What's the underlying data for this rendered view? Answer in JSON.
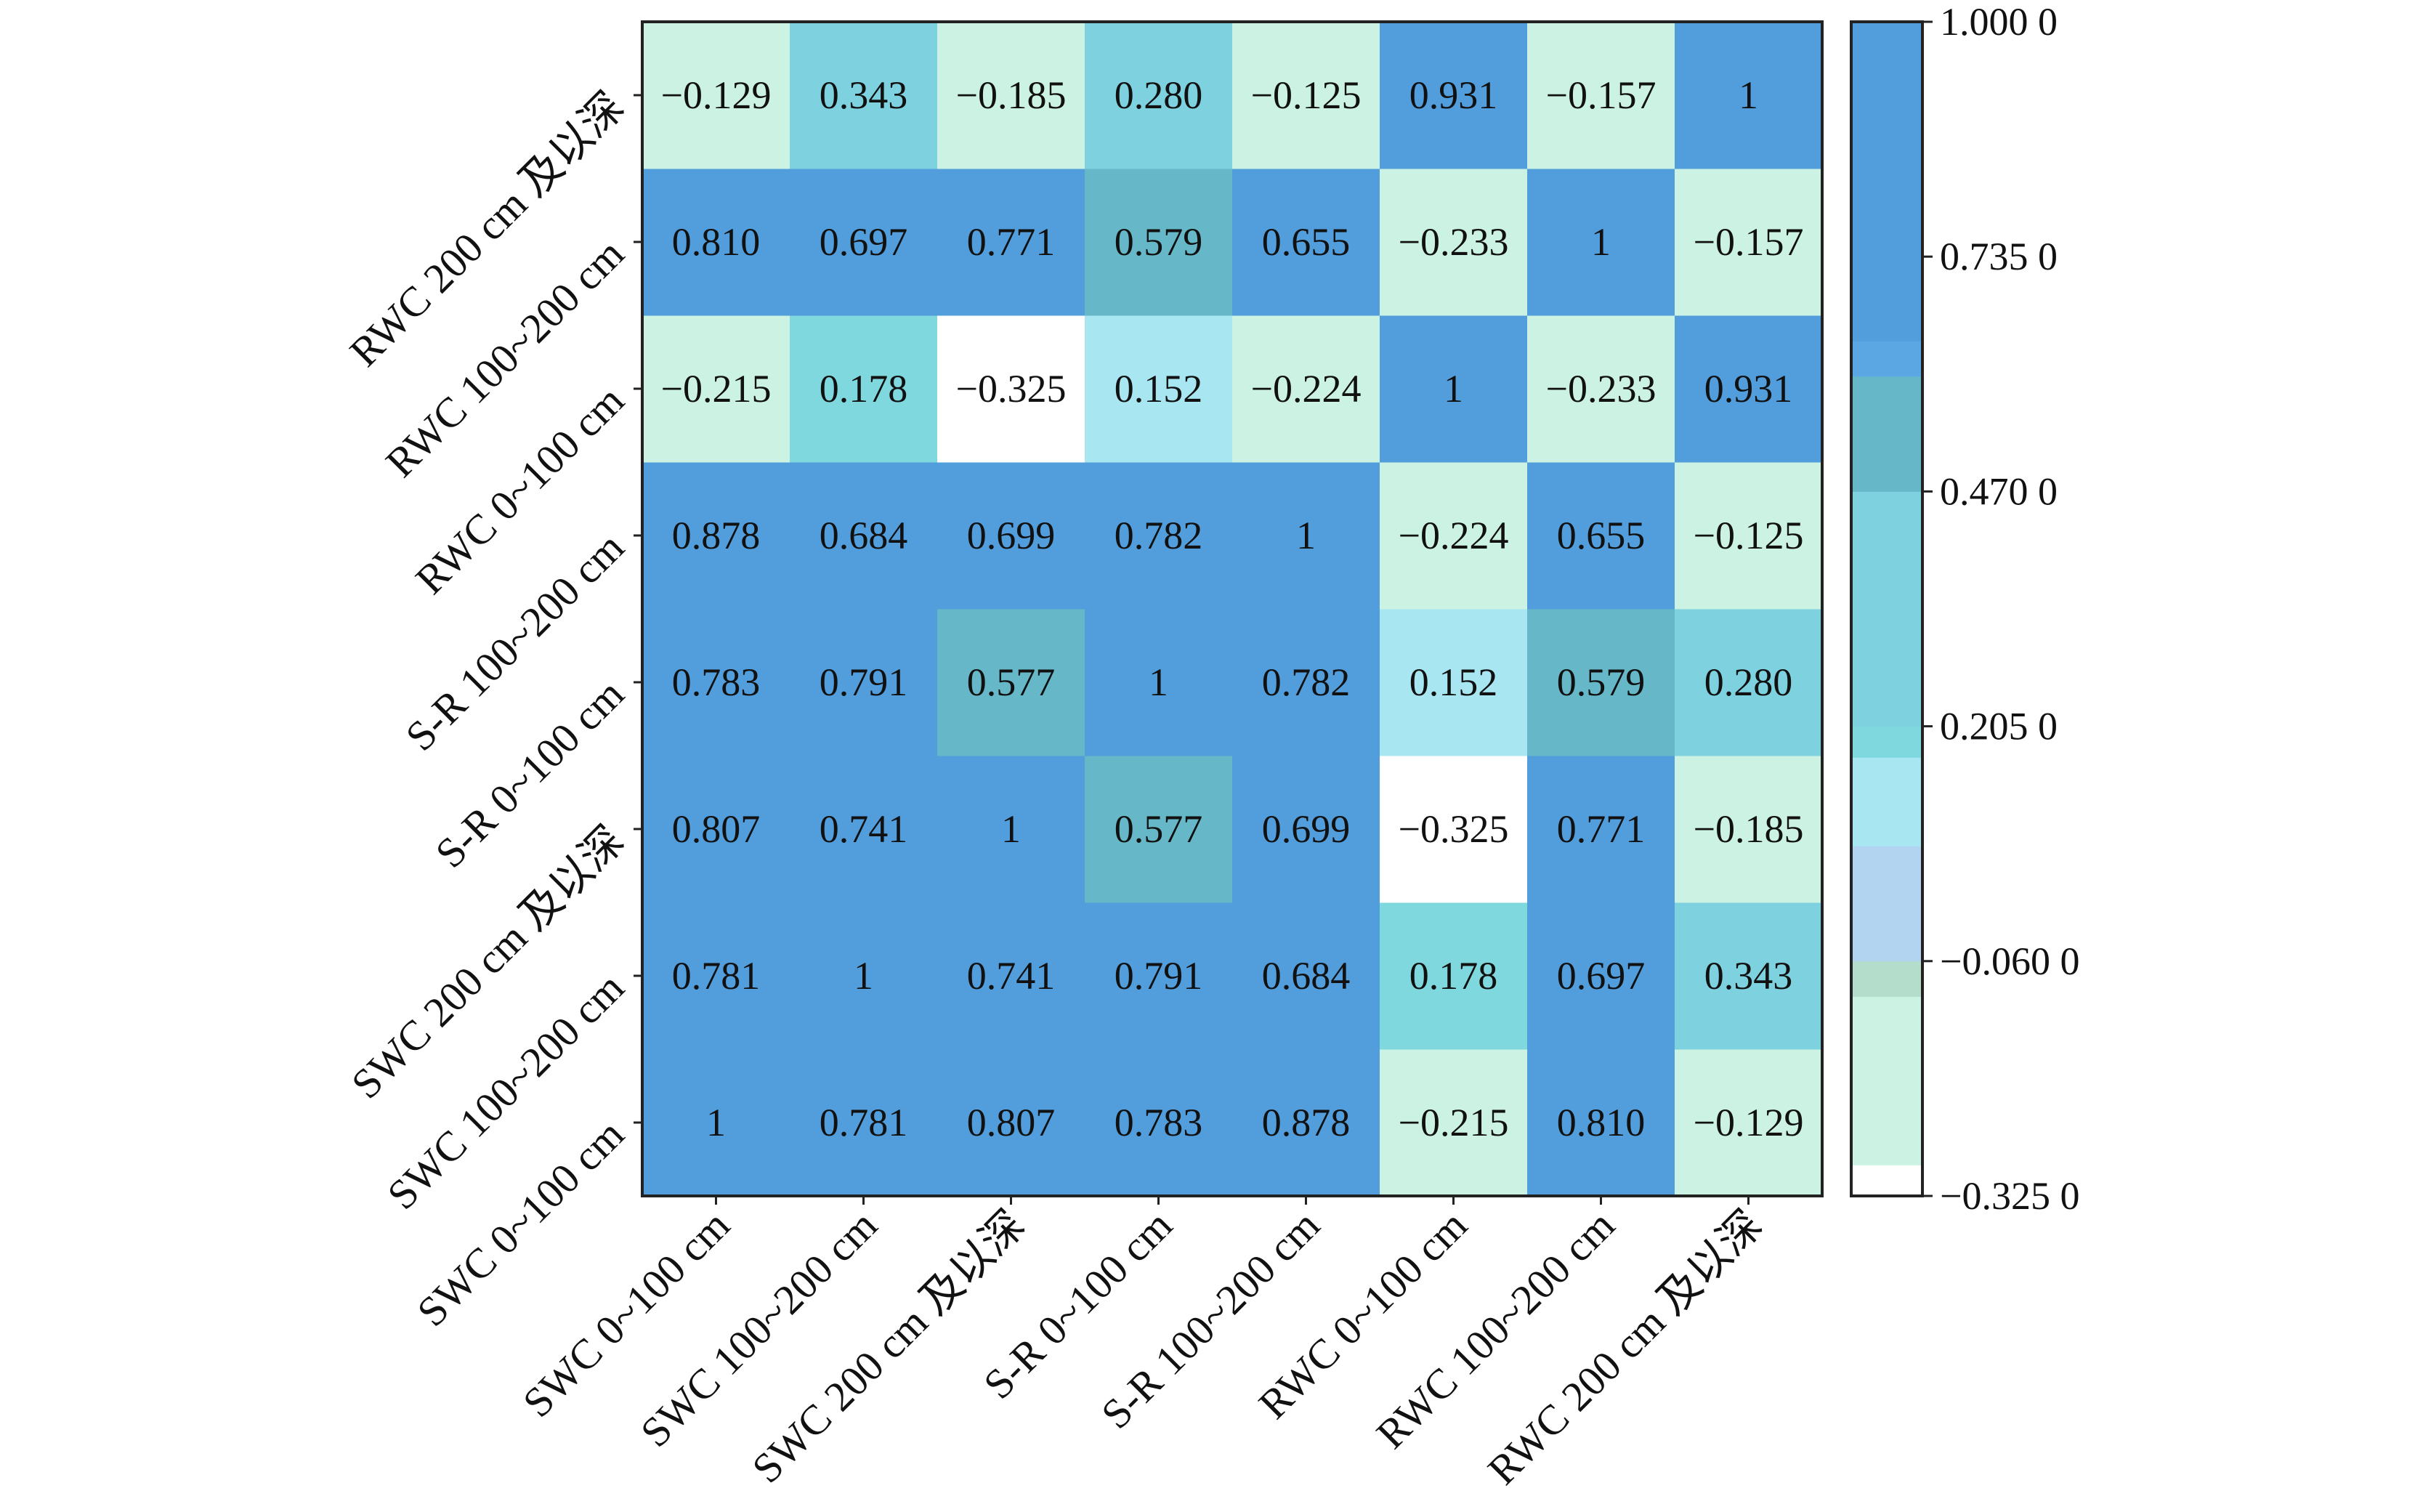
{
  "chart_data": {
    "type": "heatmap",
    "title": "",
    "x_labels": [
      "SWC 0~100 cm",
      "SWC 100~200 cm",
      "SWC 200 cm 及以深",
      "S-R 0~100 cm",
      "S-R 100~200 cm",
      "RWC 0~100 cm",
      "RWC 100~200 cm",
      "RWC 200 cm 及以深"
    ],
    "y_labels": [
      "SWC 0~100 cm",
      "SWC 100~200 cm",
      "SWC 200 cm 及以深",
      "S-R 0~100 cm",
      "S-R 100~200 cm",
      "RWC 0~100 cm",
      "RWC 100~200 cm",
      "RWC 200 cm 及以深"
    ],
    "y_order": "bottom-to-top",
    "matrix": [
      [
        "1",
        "0.781",
        "0.807",
        "0.783",
        "0.878",
        "−0.215",
        "0.810",
        "−0.129"
      ],
      [
        "0.781",
        "1",
        "0.741",
        "0.791",
        "0.684",
        "0.178",
        "0.697",
        "0.343"
      ],
      [
        "0.807",
        "0.741",
        "1",
        "0.577",
        "0.699",
        "−0.325",
        "0.771",
        "−0.185"
      ],
      [
        "0.783",
        "0.791",
        "0.577",
        "1",
        "0.782",
        "0.152",
        "0.579",
        "0.280"
      ],
      [
        "0.878",
        "0.684",
        "0.699",
        "0.782",
        "1",
        "−0.224",
        "0.655",
        "−0.125"
      ],
      [
        "−0.215",
        "0.178",
        "−0.325",
        "0.152",
        "−0.224",
        "1",
        "−0.233",
        "0.931"
      ],
      [
        "0.810",
        "0.697",
        "0.771",
        "0.579",
        "0.655",
        "−0.233",
        "1",
        "−0.157"
      ],
      [
        "−0.129",
        "0.343",
        "−0.185",
        "0.280",
        "−0.125",
        "0.931",
        "−0.157",
        "1"
      ]
    ],
    "value_range": [
      -0.325,
      1.0
    ],
    "colorbar": {
      "ticks": [
        1.0,
        0.735,
        0.47,
        0.205,
        -0.06,
        -0.325
      ],
      "tick_labels": [
        "1.000 0",
        "0.735 0",
        "0.470 0",
        "0.205 0",
        "−0.060 0",
        "−0.325 0"
      ]
    },
    "color_bands": [
      {
        "min": -0.325,
        "max": -0.29,
        "color": "#ffffff"
      },
      {
        "min": -0.29,
        "max": -0.1,
        "color": "#cbf2e2"
      },
      {
        "min": -0.1,
        "max": -0.06,
        "color": "#b4ddcc"
      },
      {
        "min": -0.06,
        "max": 0.07,
        "color": "#b2d4f0"
      },
      {
        "min": 0.07,
        "max": 0.17,
        "color": "#a8e6f2"
      },
      {
        "min": 0.17,
        "max": 0.205,
        "color": "#7ed8de"
      },
      {
        "min": 0.205,
        "max": 0.47,
        "color": "#7ed1de"
      },
      {
        "min": 0.47,
        "max": 0.6,
        "color": "#66b8c9"
      },
      {
        "min": 0.6,
        "max": 0.64,
        "color": "#5aa7e4"
      },
      {
        "min": 0.64,
        "max": 1.0,
        "color": "#529ddb"
      }
    ]
  }
}
